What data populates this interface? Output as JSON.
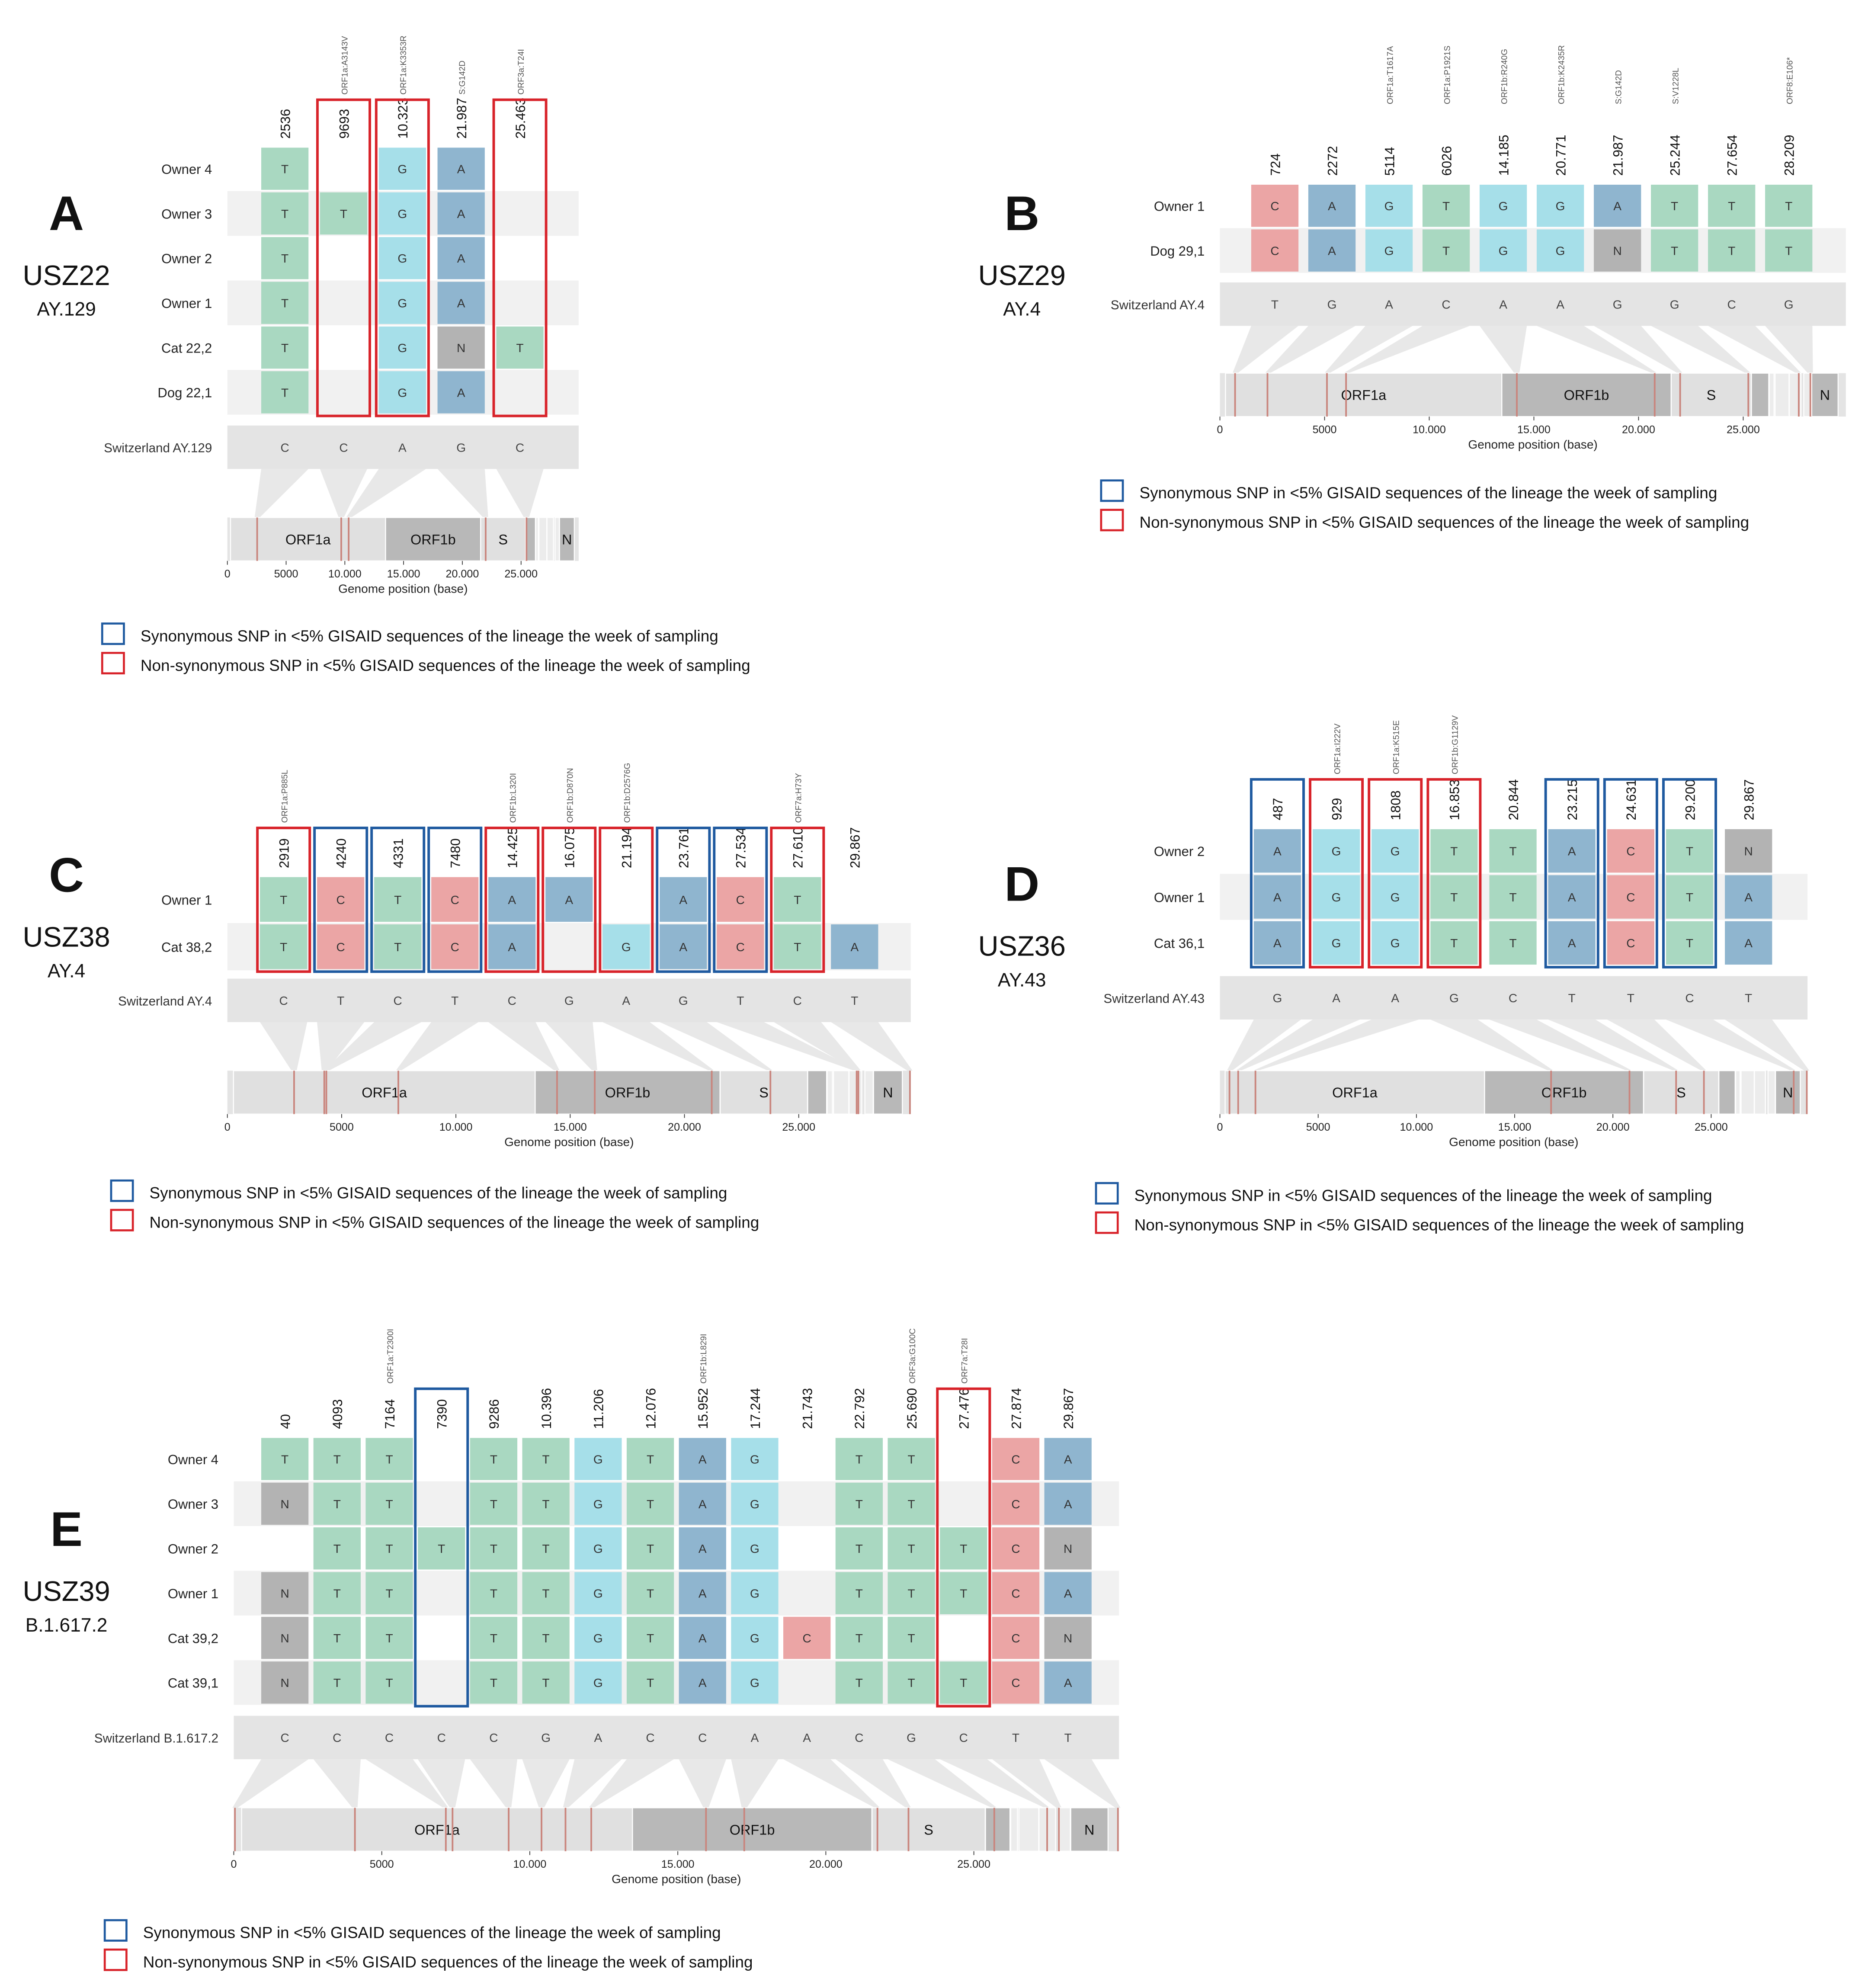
{
  "legend": {
    "synonymous": "Synonymous SNP in <5% GISAID sequences of the lineage the week of sampling",
    "non_synonymous": "Non-synonymous SNP in <5% GISAID sequences of the lineage the week of sampling"
  },
  "genome_axis": {
    "label": "Genome position (base)",
    "ticks": [
      {
        "v": 0,
        "t": "0"
      },
      {
        "v": 5000,
        "t": "5000"
      },
      {
        "v": 10000,
        "t": "10.000"
      },
      {
        "v": 15000,
        "t": "15.000"
      },
      {
        "v": 20000,
        "t": "20.000"
      },
      {
        "v": 25000,
        "t": "25.000"
      }
    ],
    "genome_length": 29903,
    "genes": [
      {
        "name": "ORF1a",
        "start": 266,
        "end": 13468,
        "tone": "light"
      },
      {
        "name": "ORF1b",
        "start": 13468,
        "end": 21555,
        "tone": "dark"
      },
      {
        "name": "S",
        "start": 21563,
        "end": 25384,
        "tone": "light"
      },
      {
        "name": "",
        "start": 25393,
        "end": 26220,
        "tone": "dark"
      },
      {
        "name": "",
        "start": 26245,
        "end": 26472,
        "tone": "pale"
      },
      {
        "name": "",
        "start": 26523,
        "end": 27191,
        "tone": "pale"
      },
      {
        "name": "",
        "start": 27202,
        "end": 27759,
        "tone": "pale"
      },
      {
        "name": "",
        "start": 27894,
        "end": 28259,
        "tone": "pale"
      },
      {
        "name": "N",
        "start": 28274,
        "end": 29533,
        "tone": "dark"
      }
    ]
  },
  "colors": {
    "T": "#a9d8c1",
    "G": "#a6dfe9",
    "A": "#8fb5cf",
    "C": "#eba5a5",
    "N": "#b3b3b3",
    "synonymous_box": "#1f5aa0",
    "non_synonymous_box": "#d8232a",
    "snp_line": "#c9857d"
  },
  "panels": [
    {
      "letter": "A",
      "sample": "USZ22",
      "lineage": "AY.129",
      "rows": [
        "Owner 4",
        "Owner 3",
        "Owner 2",
        "Owner 1",
        "Cat 22,2",
        "Dog 22,1"
      ],
      "reference_label": "Switzerland AY.129",
      "columns": [
        {
          "label": "2536",
          "pos": 2536,
          "note": "",
          "box": "none",
          "bases": "TTTTTT",
          "ref": "C"
        },
        {
          "label": "9693",
          "pos": 9693,
          "note": "ORF1a:A3143V",
          "box": "non_synonymous",
          "bases": "-T----",
          "ref": "C"
        },
        {
          "label": "10.323",
          "pos": 10323,
          "note": "ORF1a:K3353R",
          "box": "non_synonymous",
          "bases": "GGGGGG",
          "ref": "A"
        },
        {
          "label": "21.987",
          "pos": 21987,
          "note": "S:G142D",
          "box": "none",
          "bases": "AAAANA",
          "ref": "G"
        },
        {
          "label": "25.463",
          "pos": 25463,
          "note": "ORF3a:T24I",
          "box": "non_synonymous",
          "bases": "----T-",
          "ref": "C"
        }
      ]
    },
    {
      "letter": "B",
      "sample": "USZ29",
      "lineage": "AY.4",
      "rows": [
        "Owner 1",
        "Dog 29,1"
      ],
      "reference_label": "Switzerland AY.4",
      "columns": [
        {
          "label": "724",
          "pos": 724,
          "note": "",
          "box": "none",
          "bases": "CC",
          "ref": "T"
        },
        {
          "label": "2272",
          "pos": 2272,
          "note": "",
          "box": "none",
          "bases": "AA",
          "ref": "G"
        },
        {
          "label": "5114",
          "pos": 5114,
          "note": "ORF1a:T1617A",
          "box": "none",
          "bases": "GG",
          "ref": "A"
        },
        {
          "label": "6026",
          "pos": 6026,
          "note": "ORF1a:P1921S",
          "box": "none",
          "bases": "TT",
          "ref": "C"
        },
        {
          "label": "14.185",
          "pos": 14185,
          "note": "ORF1b:R240G",
          "box": "none",
          "bases": "GG",
          "ref": "A"
        },
        {
          "label": "20.771",
          "pos": 20771,
          "note": "ORF1b:K2435R",
          "box": "none",
          "bases": "GG",
          "ref": "A"
        },
        {
          "label": "21.987",
          "pos": 21987,
          "note": "S:G142D",
          "box": "none",
          "bases": "AN",
          "ref": "G"
        },
        {
          "label": "25.244",
          "pos": 25244,
          "note": "S:V1228L",
          "box": "none",
          "bases": "TT",
          "ref": "G"
        },
        {
          "label": "27.654",
          "pos": 27654,
          "note": "",
          "box": "none",
          "bases": "TT",
          "ref": "C"
        },
        {
          "label": "28.209",
          "pos": 28209,
          "note": "ORF8:E106*",
          "box": "none",
          "bases": "TT",
          "ref": "G"
        }
      ]
    },
    {
      "letter": "C",
      "sample": "USZ38",
      "lineage": "AY.4",
      "rows": [
        "Owner 1",
        "Cat 38,2"
      ],
      "reference_label": "Switzerland AY.4",
      "columns": [
        {
          "label": "2919",
          "pos": 2919,
          "note": "ORF1a:P885L",
          "box": "non_synonymous",
          "bases": "TT",
          "ref": "C"
        },
        {
          "label": "4240",
          "pos": 4240,
          "note": "",
          "box": "synonymous",
          "bases": "CC",
          "ref": "T"
        },
        {
          "label": "4331",
          "pos": 4331,
          "note": "",
          "box": "synonymous",
          "bases": "TT",
          "ref": "C"
        },
        {
          "label": "7480",
          "pos": 7480,
          "note": "",
          "box": "synonymous",
          "bases": "CC",
          "ref": "T"
        },
        {
          "label": "14.425",
          "pos": 14425,
          "note": "ORF1b:L320I",
          "box": "non_synonymous",
          "bases": "AA",
          "ref": "C"
        },
        {
          "label": "16.075",
          "pos": 16075,
          "note": "ORF1b:D870N",
          "box": "non_synonymous",
          "bases": "A-",
          "ref": "G"
        },
        {
          "label": "21.194",
          "pos": 21194,
          "note": "ORF1b:D2576G",
          "box": "non_synonymous",
          "bases": "-G",
          "ref": "A"
        },
        {
          "label": "23.761",
          "pos": 23761,
          "note": "",
          "box": "synonymous",
          "bases": "AA",
          "ref": "G"
        },
        {
          "label": "27.534",
          "pos": 27534,
          "note": "",
          "box": "synonymous",
          "bases": "CC",
          "ref": "T"
        },
        {
          "label": "27.610",
          "pos": 27610,
          "note": "ORF7a:H73Y",
          "box": "non_synonymous",
          "bases": "TT",
          "ref": "C"
        },
        {
          "label": "29.867",
          "pos": 29867,
          "note": "",
          "box": "none",
          "bases": "-A",
          "ref": "T"
        }
      ]
    },
    {
      "letter": "D",
      "sample": "USZ36",
      "lineage": "AY.43",
      "rows": [
        "Owner 2",
        "Owner 1",
        "Cat 36,1"
      ],
      "reference_label": "Switzerland AY.43",
      "columns": [
        {
          "label": "487",
          "pos": 487,
          "note": "",
          "box": "synonymous",
          "bases": "AAA",
          "ref": "G"
        },
        {
          "label": "929",
          "pos": 929,
          "note": "ORF1a:I222V",
          "box": "non_synonymous",
          "bases": "GGG",
          "ref": "A"
        },
        {
          "label": "1808",
          "pos": 1808,
          "note": "ORF1a:K515E",
          "box": "non_synonymous",
          "bases": "GGG",
          "ref": "A"
        },
        {
          "label": "16.853",
          "pos": 16853,
          "note": "ORF1b:G1129V",
          "box": "non_synonymous",
          "bases": "TTT",
          "ref": "G"
        },
        {
          "label": "20.844",
          "pos": 20844,
          "note": "",
          "box": "none",
          "bases": "TTT",
          "ref": "C"
        },
        {
          "label": "23.215",
          "pos": 23215,
          "note": "",
          "box": "synonymous",
          "bases": "AAA",
          "ref": "T"
        },
        {
          "label": "24.631",
          "pos": 24631,
          "note": "",
          "box": "synonymous",
          "bases": "CCC",
          "ref": "T"
        },
        {
          "label": "29.200",
          "pos": 29200,
          "note": "",
          "box": "synonymous",
          "bases": "TTT",
          "ref": "C"
        },
        {
          "label": "29.867",
          "pos": 29867,
          "note": "",
          "box": "none",
          "bases": "NAA",
          "ref": "T"
        }
      ]
    },
    {
      "letter": "E",
      "sample": "USZ39",
      "lineage": "B.1.617.2",
      "rows": [
        "Owner 4",
        "Owner 3",
        "Owner 2",
        "Owner 1",
        "Cat 39,2",
        "Cat 39,1"
      ],
      "reference_label": "Switzerland B.1.617.2",
      "columns": [
        {
          "label": "40",
          "pos": 40,
          "note": "",
          "box": "none",
          "bases": "TN-NNN",
          "ref": "C"
        },
        {
          "label": "4093",
          "pos": 4093,
          "note": "",
          "box": "none",
          "bases": "TTTTTT",
          "ref": "C"
        },
        {
          "label": "7164",
          "pos": 7164,
          "note": "ORF1a:T2300I",
          "box": "none",
          "bases": "TTTTTT",
          "ref": "C"
        },
        {
          "label": "7390",
          "pos": 7390,
          "note": "",
          "box": "synonymous",
          "bases": "--T---",
          "ref": "C"
        },
        {
          "label": "9286",
          "pos": 9286,
          "note": "",
          "box": "none",
          "bases": "TTTTTT",
          "ref": "C"
        },
        {
          "label": "10.396",
          "pos": 10396,
          "note": "",
          "box": "none",
          "bases": "TTTTTT",
          "ref": "G"
        },
        {
          "label": "11.206",
          "pos": 11206,
          "note": "",
          "box": "none",
          "bases": "GGGGGG",
          "ref": "A"
        },
        {
          "label": "12.076",
          "pos": 12076,
          "note": "",
          "box": "none",
          "bases": "TTTTTT",
          "ref": "C"
        },
        {
          "label": "15.952",
          "pos": 15952,
          "note": "ORF1b:L829I",
          "box": "none",
          "bases": "AAAAAA",
          "ref": "C"
        },
        {
          "label": "17.244",
          "pos": 17244,
          "note": "",
          "box": "none",
          "bases": "GGGGGG",
          "ref": "A"
        },
        {
          "label": "21.743",
          "pos": 21743,
          "note": "",
          "box": "none",
          "bases": "----C-",
          "ref": "A"
        },
        {
          "label": "22.792",
          "pos": 22792,
          "note": "",
          "box": "none",
          "bases": "TTTTTT",
          "ref": "C"
        },
        {
          "label": "25.690",
          "pos": 25690,
          "note": "ORF3a:G100C",
          "box": "none",
          "bases": "TTTTTT",
          "ref": "G"
        },
        {
          "label": "27.476",
          "pos": 27476,
          "note": "ORF7a:T28I",
          "box": "non_synonymous",
          "bases": "--TT-T",
          "ref": "C"
        },
        {
          "label": "27.874",
          "pos": 27874,
          "note": "",
          "box": "none",
          "bases": "CCCCCC",
          "ref": "T"
        },
        {
          "label": "29.867",
          "pos": 29867,
          "note": "",
          "box": "none",
          "bases": "AANANA",
          "ref": "T"
        }
      ]
    }
  ]
}
